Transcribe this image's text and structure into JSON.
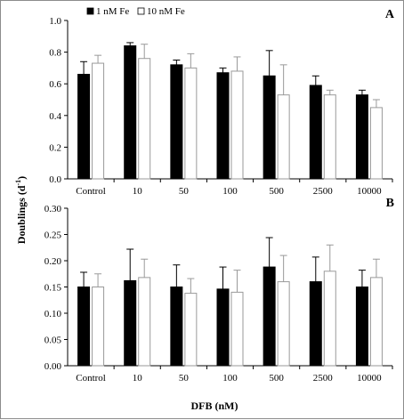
{
  "chart_data": [
    {
      "type": "bar",
      "panel": "A",
      "categories": [
        "Control",
        "10",
        "50",
        "100",
        "500",
        "2500",
        "10000"
      ],
      "series": [
        {
          "name": "1  nM Fe",
          "color": "#000000",
          "values": [
            0.66,
            0.84,
            0.72,
            0.67,
            0.65,
            0.59,
            0.53
          ],
          "errors": [
            0.08,
            0.02,
            0.03,
            0.03,
            0.16,
            0.06,
            0.03
          ]
        },
        {
          "name": "10 nM Fe",
          "color": "#ffffff",
          "values": [
            0.73,
            0.76,
            0.7,
            0.68,
            0.53,
            0.53,
            0.45
          ],
          "errors": [
            0.05,
            0.09,
            0.09,
            0.09,
            0.19,
            0.03,
            0.05
          ]
        }
      ],
      "ylim": [
        0,
        1.0
      ],
      "yticks": [
        "0.0",
        "0.2",
        "0.4",
        "0.6",
        "0.8",
        "1.0"
      ],
      "legend": "top-left"
    },
    {
      "type": "bar",
      "panel": "B",
      "categories": [
        "Control",
        "10",
        "50",
        "100",
        "500",
        "2500",
        "10000"
      ],
      "series": [
        {
          "name": "1  nM Fe",
          "color": "#000000",
          "values": [
            0.15,
            0.162,
            0.15,
            0.146,
            0.188,
            0.16,
            0.15
          ],
          "errors": [
            0.028,
            0.06,
            0.042,
            0.042,
            0.056,
            0.047,
            0.032
          ]
        },
        {
          "name": "10 nM Fe",
          "color": "#ffffff",
          "values": [
            0.15,
            0.168,
            0.138,
            0.14,
            0.16,
            0.18,
            0.168
          ],
          "errors": [
            0.025,
            0.035,
            0.028,
            0.042,
            0.05,
            0.05,
            0.035
          ]
        }
      ],
      "ylim": [
        0,
        0.3
      ],
      "yticks": [
        "0.00",
        "0.05",
        "0.10",
        "0.15",
        "0.20",
        "0.25",
        "0.30"
      ]
    }
  ],
  "ylabel_main": "Doublings (d",
  "ylabel_sup": "-1",
  "ylabel_close": ")",
  "xlabel": "DFB (nM)"
}
